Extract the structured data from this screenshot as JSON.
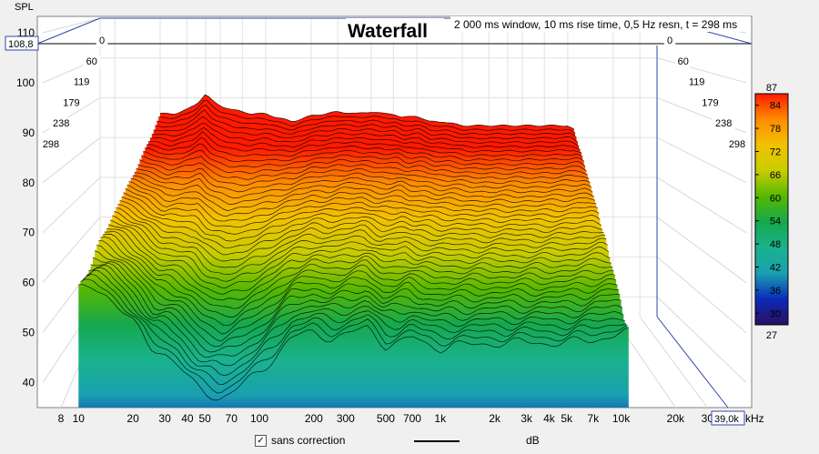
{
  "chart_data": {
    "type": "waterfall",
    "title": "Waterfall",
    "subtitle": "2 000 ms window, 10 ms rise time,  0,5 Hz resn, t = 298 ms",
    "ylabel": "SPL",
    "xlabel": "kHz",
    "ylim": [
      35,
      110
    ],
    "y_ticks": [
      "40",
      "50",
      "60",
      "70",
      "80",
      "90",
      "100",
      "110"
    ],
    "y_top_readout": "108,8",
    "x_scale": "log",
    "xlim": [
      8,
      39000
    ],
    "x_ticks": [
      {
        "v": 8,
        "t": "8"
      },
      {
        "v": 10,
        "t": "10"
      },
      {
        "v": 20,
        "t": "20"
      },
      {
        "v": 30,
        "t": "30"
      },
      {
        "v": 40,
        "t": "40"
      },
      {
        "v": 50,
        "t": "50"
      },
      {
        "v": 70,
        "t": "70"
      },
      {
        "v": 100,
        "t": "100"
      },
      {
        "v": 200,
        "t": "200"
      },
      {
        "v": 300,
        "t": "300"
      },
      {
        "v": 500,
        "t": "500"
      },
      {
        "v": 700,
        "t": "700"
      },
      {
        "v": 1000,
        "t": "1k"
      },
      {
        "v": 2000,
        "t": "2k"
      },
      {
        "v": 3000,
        "t": "3k"
      },
      {
        "v": 4000,
        "t": "4k"
      },
      {
        "v": 5000,
        "t": "5k"
      },
      {
        "v": 7000,
        "t": "7k"
      },
      {
        "v": 10000,
        "t": "10k"
      },
      {
        "v": 20000,
        "t": "20k"
      },
      {
        "v": 30000,
        "t": "30"
      }
    ],
    "x_right_readout": "39,0k",
    "time_ticks_ms": [
      "0",
      "60",
      "119",
      "179",
      "238",
      "298"
    ],
    "colorbar": {
      "min_label": "27",
      "max_label": "87",
      "tick_labels": [
        "84",
        "78",
        "72",
        "66",
        "60",
        "54",
        "48",
        "42",
        "36",
        "30"
      ],
      "tick_values": [
        84,
        78,
        72,
        66,
        60,
        54,
        48,
        42,
        36,
        30
      ],
      "range": [
        27,
        87
      ],
      "colors": [
        "#ff1a00",
        "#ff8c00",
        "#f2c200",
        "#c8cc00",
        "#55b800",
        "#16a84e",
        "#1ab28c",
        "#1aa0b0",
        "#0a2ab8",
        "#2a1060"
      ]
    },
    "front_curve": {
      "x": [
        10,
        12,
        14,
        16,
        20,
        25,
        30,
        35,
        40,
        45,
        50,
        60,
        70,
        80,
        100,
        120,
        150,
        200,
        250,
        300,
        400,
        500,
        600,
        700,
        800,
        1000,
        1200,
        1500,
        2000,
        3000,
        4000,
        5000,
        7000,
        10000,
        11000
      ],
      "y": [
        58.5,
        59,
        58,
        56,
        52,
        47,
        46,
        44,
        41,
        39,
        38,
        37,
        38,
        39.5,
        42,
        45,
        49,
        50,
        49,
        49.5,
        51,
        47.5,
        48,
        49,
        48,
        47,
        47.5,
        47.5,
        48,
        48,
        48,
        48,
        48.5,
        50,
        50
      ]
    },
    "back_curve": {
      "x": [
        20,
        25,
        30,
        35,
        40,
        45,
        50,
        60,
        70,
        80,
        100,
        120,
        150,
        200,
        250,
        300,
        400,
        500,
        600,
        700,
        800,
        1000,
        1200,
        1500,
        2000,
        3000,
        4000,
        5000,
        7000,
        10000,
        11000
      ],
      "y": [
        86,
        86,
        87,
        88.5,
        91,
        89,
        88,
        87,
        86.5,
        86,
        86,
        85,
        84,
        85.5,
        86,
        86.5,
        86,
        86.5,
        86,
        86,
        85,
        85.5,
        84,
        84,
        83,
        83,
        83,
        83,
        83,
        83,
        82
      ]
    }
  },
  "legend": {
    "check_mark": "✓",
    "series_name": "sans correction",
    "unit": "dB"
  }
}
